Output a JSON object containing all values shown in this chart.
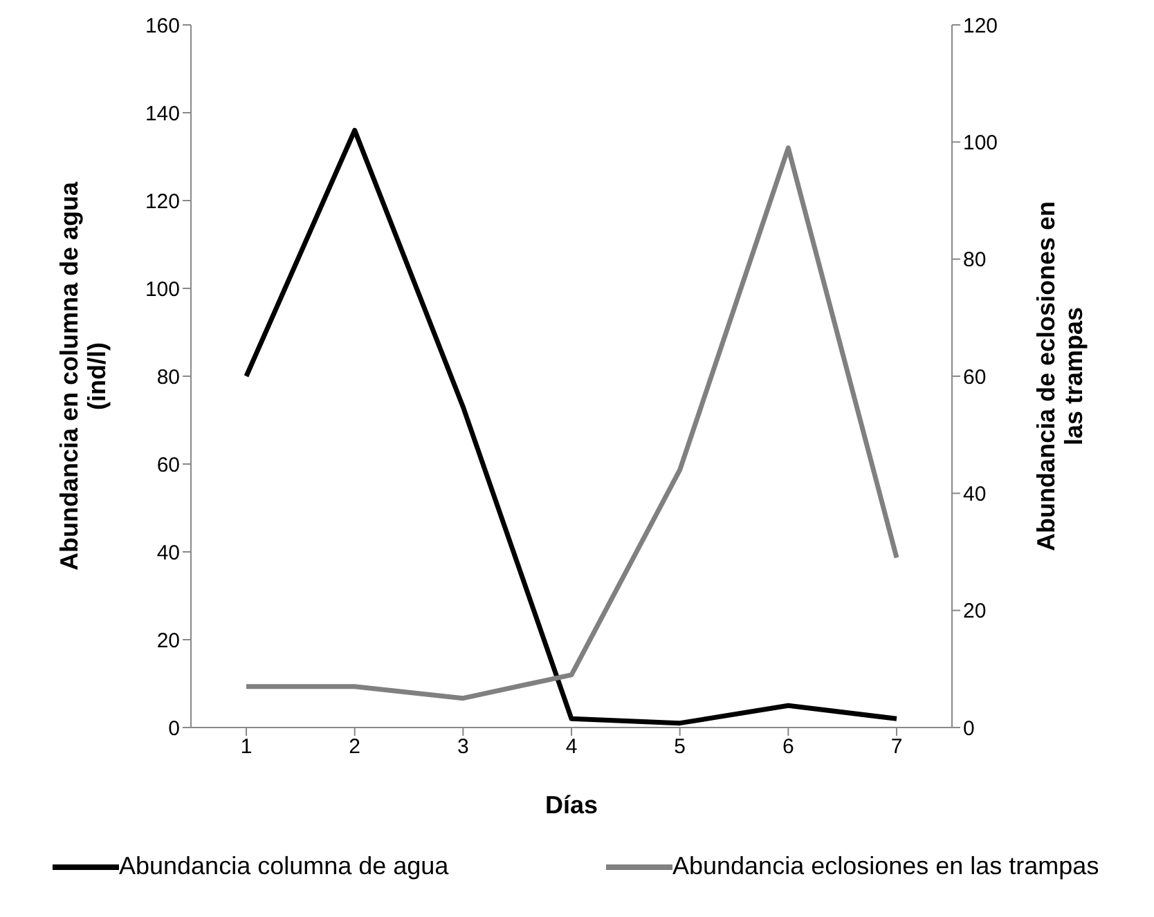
{
  "chart_data": {
    "type": "line",
    "xlabel": "Días",
    "ylabel": "Abundancia en columna de agua (ind/l)",
    "y2label": "Abundancia de eclosiones en las trampas",
    "categories": [
      "1",
      "2",
      "3",
      "4",
      "5",
      "6",
      "7"
    ],
    "series": [
      {
        "name": "Abundancia columna de agua",
        "color": "#000000",
        "values": [
          80,
          136,
          73,
          2,
          1,
          5,
          2
        ]
      },
      {
        "name": "Abundancia eclosiones en las trampas",
        "color": "#808080",
        "axis": "y2",
        "values": [
          7,
          7,
          5,
          9,
          44,
          99,
          29
        ]
      }
    ],
    "ylim": [
      0,
      160
    ],
    "yticks": [
      0,
      20,
      40,
      60,
      80,
      100,
      120,
      140,
      160
    ],
    "y2lim": [
      0,
      120
    ],
    "y2ticks": [
      0,
      20,
      40,
      60,
      80,
      100,
      120
    ],
    "grid": false,
    "legend": "bottom",
    "marker": "none",
    "line_style": "solid"
  }
}
